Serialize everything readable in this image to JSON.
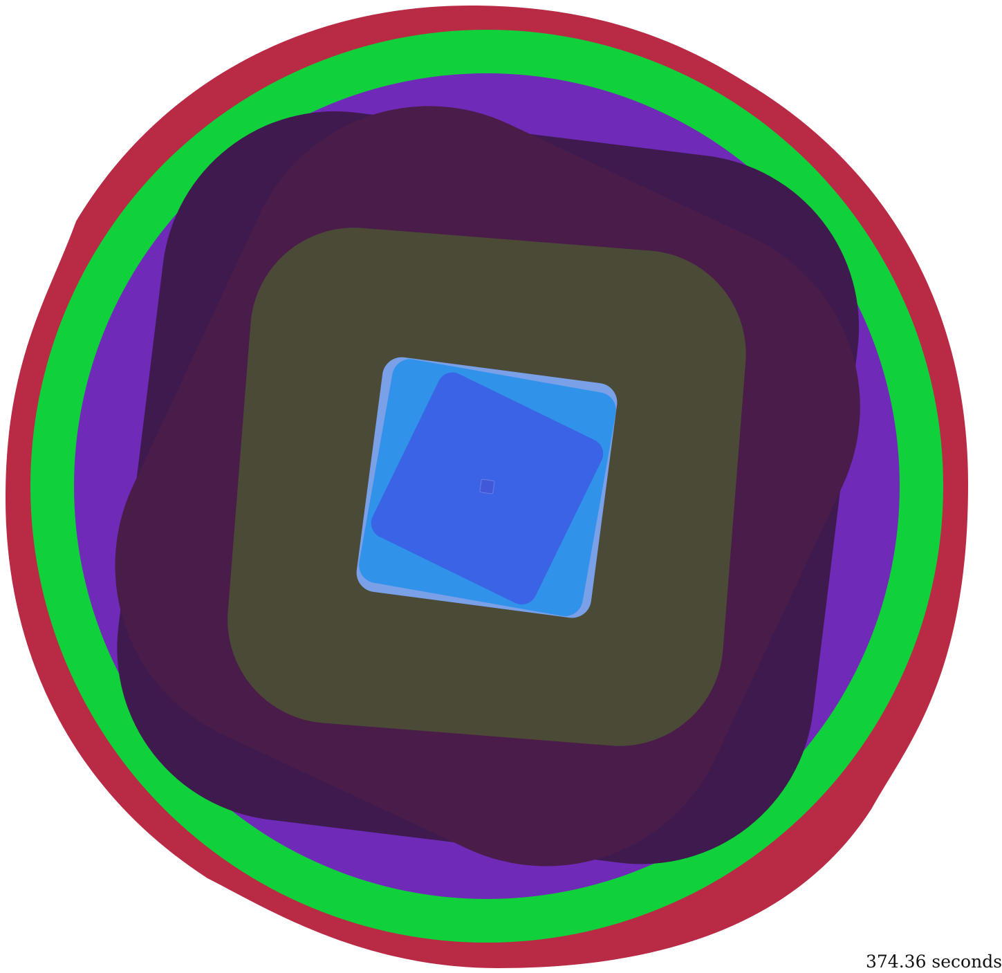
{
  "timer": {
    "text": "374.36 seconds"
  },
  "shapes": {
    "outer_ring_color": "#b92a44",
    "green_ring_color": "#10d13c",
    "purple_ring_color": "#6f2bb8",
    "dark_plum_square_color": "#3e1a4e",
    "plum_square_color": "#4a1c49",
    "olive_square_color": "#4a4a37",
    "light_blue_square_color": "#7aa0e8",
    "blue_square_color": "#3192ea",
    "royal_blue_square_color": "#3a63e6",
    "center_square_color": "#4158d8"
  }
}
